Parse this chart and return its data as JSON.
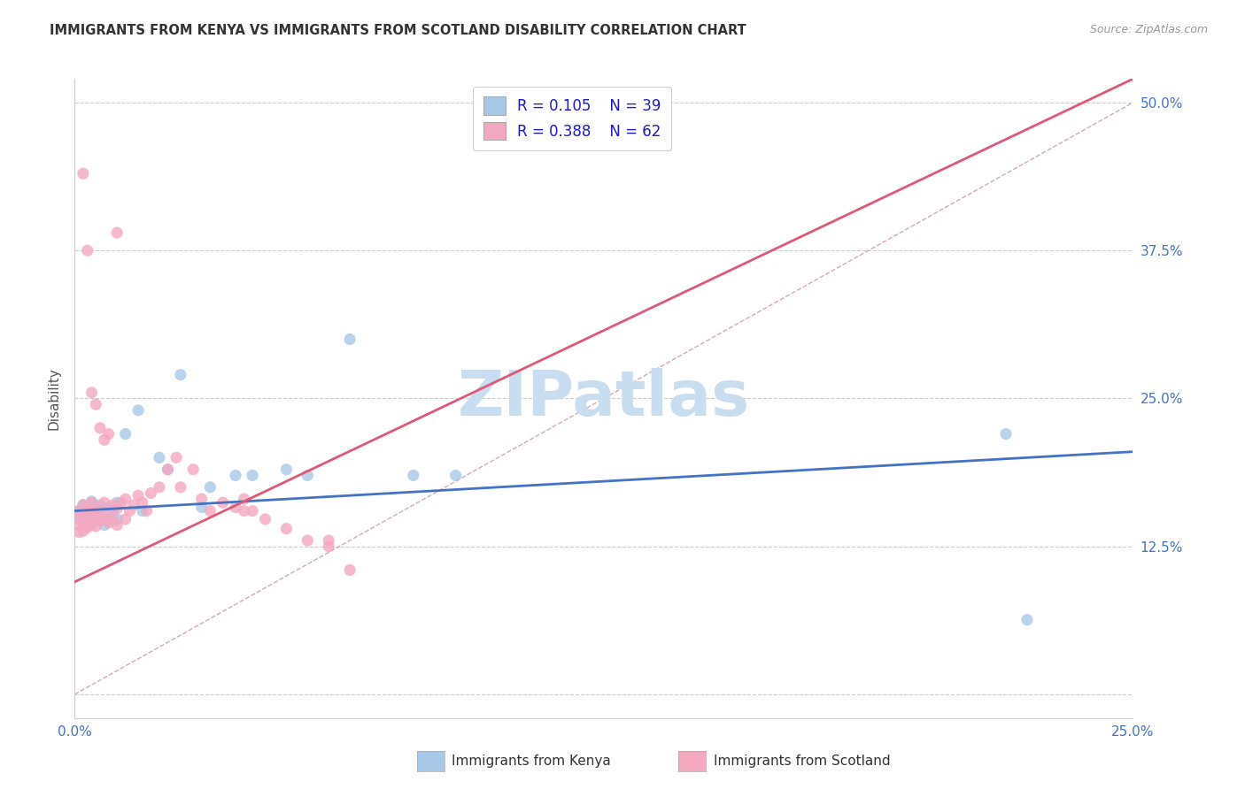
{
  "title": "IMMIGRANTS FROM KENYA VS IMMIGRANTS FROM SCOTLAND DISABILITY CORRELATION CHART",
  "source": "Source: ZipAtlas.com",
  "ylabel_label": "Disability",
  "legend_label_1": "Immigrants from Kenya",
  "legend_label_2": "Immigrants from Scotland",
  "R1": 0.105,
  "N1": 39,
  "R2": 0.388,
  "N2": 62,
  "xlim": [
    0.0,
    0.25
  ],
  "ylim": [
    -0.02,
    0.52
  ],
  "xticks": [
    0.0,
    0.05,
    0.1,
    0.15,
    0.2,
    0.25
  ],
  "xtick_labels": [
    "0.0%",
    "",
    "",
    "",
    "",
    "25.0%"
  ],
  "yticks": [
    0.0,
    0.125,
    0.25,
    0.375,
    0.5
  ],
  "ytick_labels_right": [
    "",
    "12.5%",
    "25.0%",
    "37.5%",
    "50.0%"
  ],
  "color_kenya": "#a8c8e8",
  "color_scotland": "#f4a8c0",
  "line_color_kenya": "#4472c4",
  "line_color_scotland": "#e05878",
  "diagonal_color": "#d0a0b0",
  "kenya_line": [
    0.0,
    0.25,
    0.155,
    0.205
  ],
  "scotland_line": [
    0.0,
    0.25,
    0.095,
    0.52
  ],
  "kenya_x": [
    0.001,
    0.001,
    0.002,
    0.002,
    0.002,
    0.003,
    0.003,
    0.003,
    0.004,
    0.004,
    0.005,
    0.005,
    0.006,
    0.006,
    0.007,
    0.008,
    0.008,
    0.009,
    0.01,
    0.01,
    0.012,
    0.015,
    0.016,
    0.02,
    0.022,
    0.025,
    0.03,
    0.032,
    0.038,
    0.042,
    0.05,
    0.055,
    0.065,
    0.08,
    0.09,
    0.22,
    0.225,
    0.002,
    0.003
  ],
  "kenya_y": [
    0.155,
    0.148,
    0.16,
    0.152,
    0.145,
    0.158,
    0.15,
    0.143,
    0.163,
    0.147,
    0.155,
    0.148,
    0.16,
    0.15,
    0.143,
    0.158,
    0.147,
    0.155,
    0.162,
    0.148,
    0.22,
    0.24,
    0.155,
    0.2,
    0.19,
    0.27,
    0.158,
    0.175,
    0.185,
    0.185,
    0.19,
    0.185,
    0.3,
    0.185,
    0.185,
    0.22,
    0.063,
    0.155,
    0.145
  ],
  "scotland_x": [
    0.001,
    0.001,
    0.001,
    0.001,
    0.002,
    0.002,
    0.002,
    0.002,
    0.003,
    0.003,
    0.003,
    0.004,
    0.004,
    0.004,
    0.005,
    0.005,
    0.005,
    0.006,
    0.006,
    0.007,
    0.007,
    0.008,
    0.008,
    0.009,
    0.009,
    0.01,
    0.01,
    0.011,
    0.012,
    0.012,
    0.013,
    0.014,
    0.015,
    0.016,
    0.017,
    0.018,
    0.02,
    0.022,
    0.024,
    0.025,
    0.028,
    0.03,
    0.032,
    0.035,
    0.038,
    0.04,
    0.042,
    0.045,
    0.05,
    0.055,
    0.06,
    0.065,
    0.002,
    0.003,
    0.004,
    0.005,
    0.006,
    0.007,
    0.008,
    0.01,
    0.04,
    0.06
  ],
  "scotland_y": [
    0.155,
    0.15,
    0.143,
    0.137,
    0.16,
    0.152,
    0.145,
    0.138,
    0.155,
    0.148,
    0.141,
    0.162,
    0.155,
    0.143,
    0.158,
    0.15,
    0.142,
    0.155,
    0.147,
    0.162,
    0.148,
    0.155,
    0.145,
    0.16,
    0.148,
    0.157,
    0.143,
    0.162,
    0.165,
    0.148,
    0.155,
    0.16,
    0.168,
    0.162,
    0.155,
    0.17,
    0.175,
    0.19,
    0.2,
    0.175,
    0.19,
    0.165,
    0.155,
    0.162,
    0.158,
    0.165,
    0.155,
    0.148,
    0.14,
    0.13,
    0.13,
    0.105,
    0.44,
    0.375,
    0.255,
    0.245,
    0.225,
    0.215,
    0.22,
    0.39,
    0.155,
    0.125
  ],
  "watermark_text": "ZIPatlas",
  "watermark_color": "#c8ddf0",
  "background_color": "#ffffff"
}
